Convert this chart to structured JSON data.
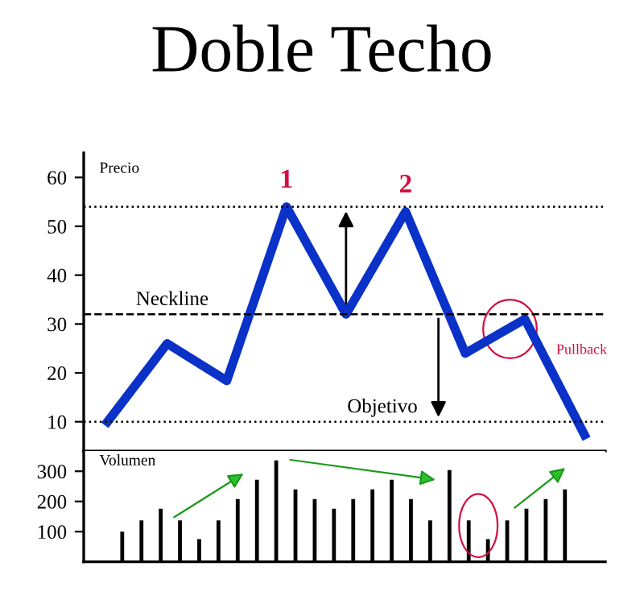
{
  "chart_data": [
    {
      "type": "line",
      "title": "Doble Techo",
      "ylabel": "Precio",
      "categories": [
        null,
        null,
        null,
        null,
        null,
        null,
        null,
        null,
        null
      ],
      "series": [
        {
          "color": "#0a32c8",
          "values": [
            10,
            26,
            18.4,
            54,
            32,
            53,
            24,
            31,
            7.3
          ]
        }
      ],
      "ylim": [
        4,
        65
      ],
      "yticks": [
        10,
        20,
        30,
        40,
        50,
        60
      ],
      "tick_labels": "y",
      "marker": "none",
      "line_style": "solid",
      "grid": false,
      "legend": false,
      "ref_lines": [
        {
          "axis": "y",
          "value": 54,
          "label": null,
          "line_style": "dotted",
          "color": "#000000"
        },
        {
          "axis": "y",
          "value": 32,
          "label": "Neckline",
          "line_style": "dashed",
          "color": "#000000"
        },
        {
          "axis": "y",
          "value": 10,
          "label": "Objetivo",
          "line_style": "dotted",
          "color": "#000000"
        }
      ],
      "annotations": [
        {
          "text": "1",
          "y": 54
        },
        {
          "text": "2",
          "y": 53
        },
        {
          "text": "Pullback",
          "y": 31
        }
      ]
    },
    {
      "type": "bar",
      "ylabel": "Volumen",
      "categories": [
        null,
        null,
        null,
        null,
        null,
        null,
        null,
        null,
        null,
        null,
        null,
        null,
        null,
        null,
        null,
        null,
        null,
        null,
        null,
        null,
        null,
        null,
        null,
        null
      ],
      "values": [
        100,
        137,
        176,
        137,
        75,
        137,
        208,
        272,
        336,
        240,
        208,
        176,
        208,
        240,
        272,
        208,
        137,
        304,
        137,
        75,
        137,
        176,
        208,
        240
      ],
      "colors": [
        "#000000",
        "#000000",
        "#000000",
        "#000000",
        "#000000",
        "#000000",
        "#000000",
        "#000000",
        "#000000",
        "#000000",
        "#000000",
        "#000000",
        "#000000",
        "#000000",
        "#000000",
        "#000000",
        "#000000",
        "#000000",
        "#000000",
        "#000000",
        "#000000",
        "#000000",
        "#000000",
        "#000000"
      ],
      "ylim": [
        0,
        367
      ],
      "yticks": [
        100,
        200,
        300
      ],
      "tick_labels": "y",
      "grid": false,
      "legend": false
    }
  ]
}
